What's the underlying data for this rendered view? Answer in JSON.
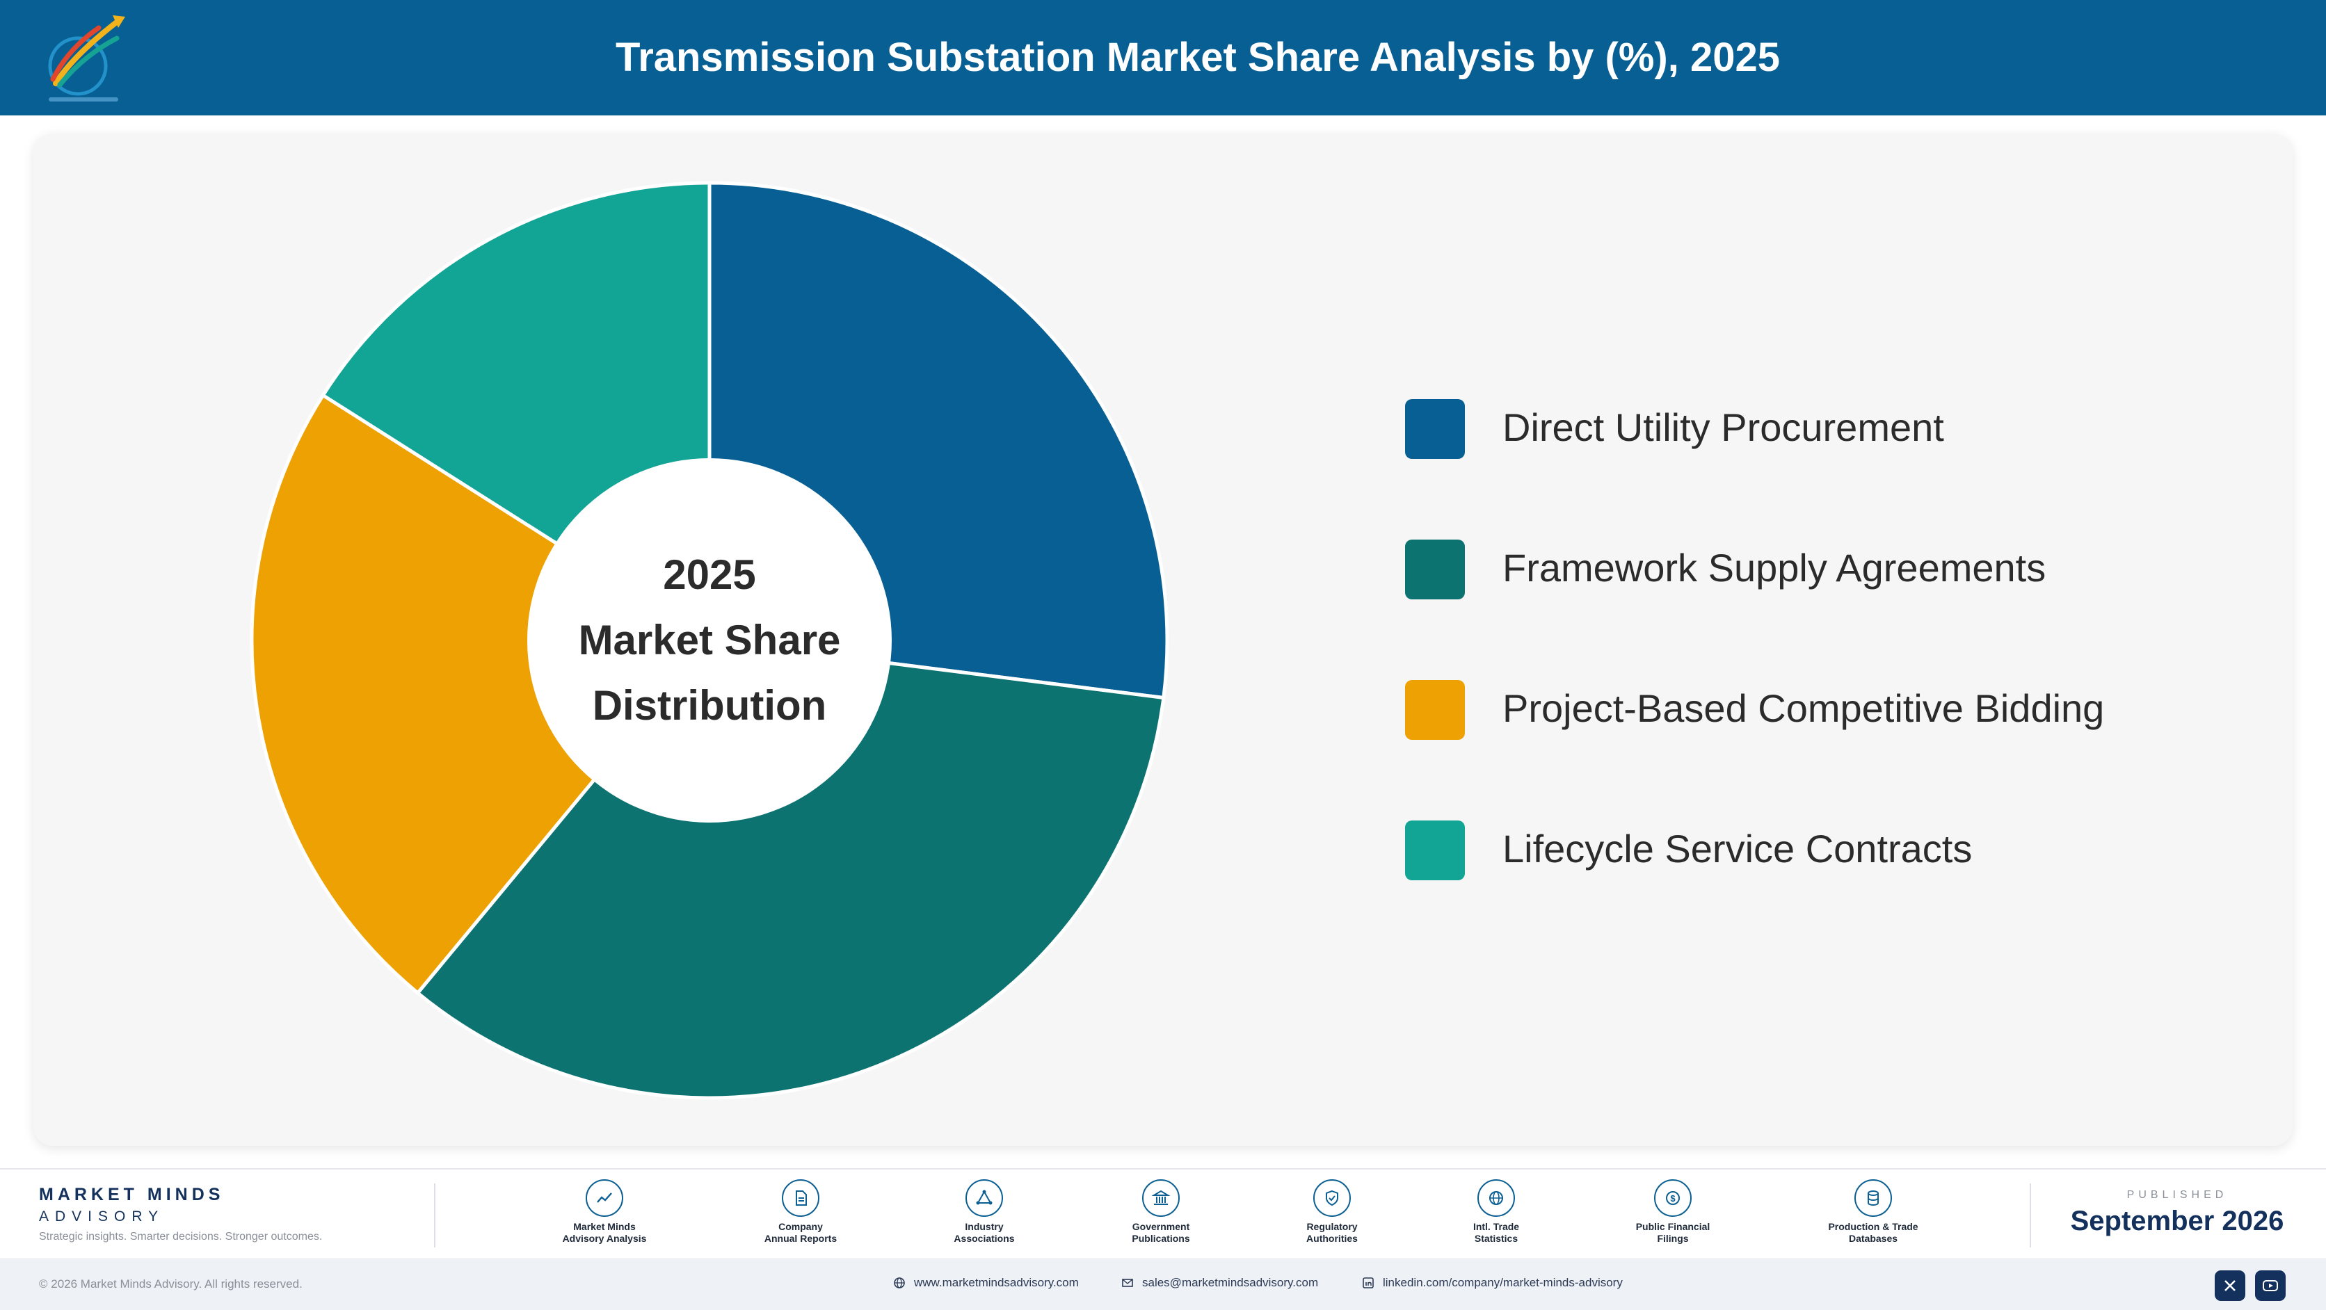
{
  "header": {
    "title": "Transmission Substation Market Share Analysis by (%), 2025",
    "logo_icon": "market-minds-logo-icon"
  },
  "chart_data": {
    "type": "pie",
    "style": "donut",
    "center_label": [
      "2025",
      "Market Share",
      "Distribution"
    ],
    "categories": [
      "Direct Utility Procurement",
      "Framework Supply Agreements",
      "Project-Based Competitive Bidding",
      "Lifecycle Service Contracts"
    ],
    "values": [
      27,
      34,
      23,
      16
    ],
    "colors": [
      "#085f93",
      "#0d7370",
      "#eea103",
      "#12a495"
    ],
    "legend_position": "right"
  },
  "footer": {
    "brand_name": "MARKET MINDS",
    "brand_sub": "ADVISORY",
    "brand_tagline": "Strategic insights. Smarter decisions. Stronger outcomes.",
    "sources": [
      {
        "label": "Market Minds\nAdvisory Analysis",
        "icon": "trend-line-icon"
      },
      {
        "label": "Company\nAnnual Reports",
        "icon": "document-icon"
      },
      {
        "label": "Industry\nAssociations",
        "icon": "network-triangle-icon"
      },
      {
        "label": "Government\nPublications",
        "icon": "government-building-icon"
      },
      {
        "label": "Regulatory\nAuthorities",
        "icon": "shield-check-icon"
      },
      {
        "label": "Intl. Trade\nStatistics",
        "icon": "globe-icon"
      },
      {
        "label": "Public Financial\nFilings",
        "icon": "dollar-coin-icon"
      },
      {
        "label": "Production & Trade\nDatabases",
        "icon": "database-icon"
      }
    ],
    "published_caption": "PUBLISHED",
    "published_date": "September 2026",
    "copyright": "© 2026 Market Minds Advisory. All rights reserved.",
    "website": "www.marketmindsadvisory.com",
    "email": "sales@marketmindsadvisory.com",
    "linkedin": "linkedin.com/company/market-minds-advisory"
  }
}
